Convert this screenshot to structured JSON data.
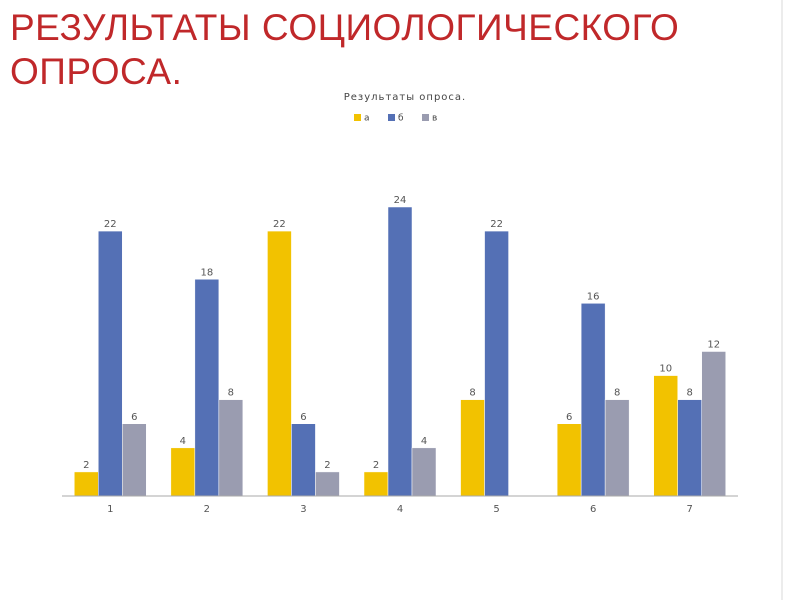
{
  "slide_title": [
    "РЕЗУЛЬТАТЫ СОЦИОЛОГИЧЕСКОГО",
    "ОПРОСА."
  ],
  "chart_data": {
    "type": "bar",
    "title": "Результаты опроса.",
    "categories": [
      "1",
      "2",
      "3",
      "4",
      "5",
      "6",
      "7"
    ],
    "series": [
      {
        "name": "а",
        "color": "#f2c200",
        "values": [
          2,
          4,
          22,
          2,
          8,
          6,
          10
        ]
      },
      {
        "name": "б",
        "color": "#5470b5",
        "values": [
          22,
          18,
          6,
          24,
          22,
          16,
          8
        ]
      },
      {
        "name": "в",
        "color": "#9a9cb0",
        "values": [
          6,
          8,
          2,
          4,
          null,
          8,
          12
        ]
      }
    ],
    "ylim": [
      0,
      24
    ],
    "legend": "top"
  }
}
